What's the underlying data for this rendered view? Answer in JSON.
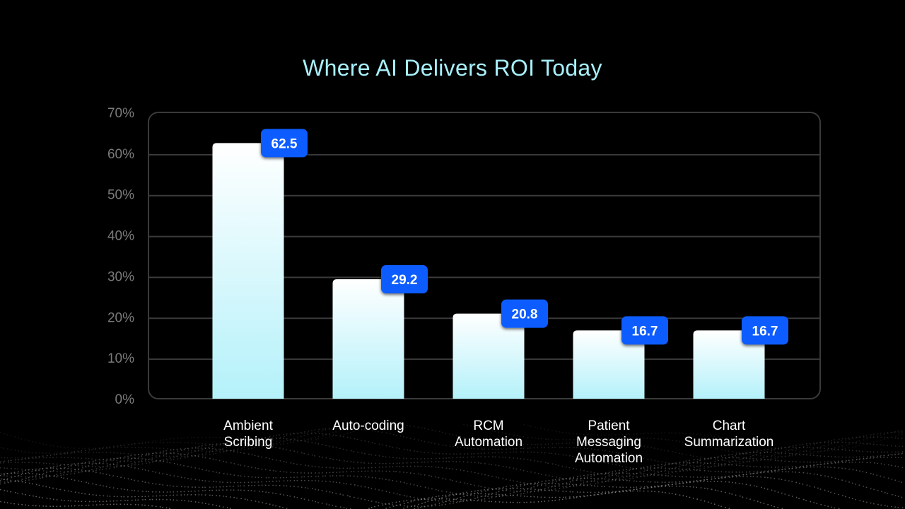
{
  "chart_data": {
    "type": "bar",
    "title": "Where AI Delivers ROI Today",
    "categories": [
      [
        "Ambient",
        "Scribing"
      ],
      [
        "Auto-coding"
      ],
      [
        "RCM",
        "Automation"
      ],
      [
        "Patient",
        "Messaging",
        "Automation"
      ],
      [
        "Chart",
        "Summarization"
      ]
    ],
    "values": [
      62.5,
      29.2,
      20.8,
      16.7,
      16.7
    ],
    "value_labels": [
      "62.5",
      "29.2",
      "20.8",
      "16.7",
      "16.7"
    ],
    "yticks": [
      "0%",
      "10%",
      "20%",
      "30%",
      "40%",
      "50%",
      "60%",
      "70%"
    ],
    "ylim": [
      0,
      70
    ],
    "xlabel": "",
    "ylabel": "",
    "grid": true,
    "colors": {
      "bar_top": "#ffffff",
      "bar_bottom": "#b4f1fa",
      "label_bg": "#0a5cff",
      "grid": "#3a3a3a",
      "title": "#a8f0fb"
    }
  }
}
